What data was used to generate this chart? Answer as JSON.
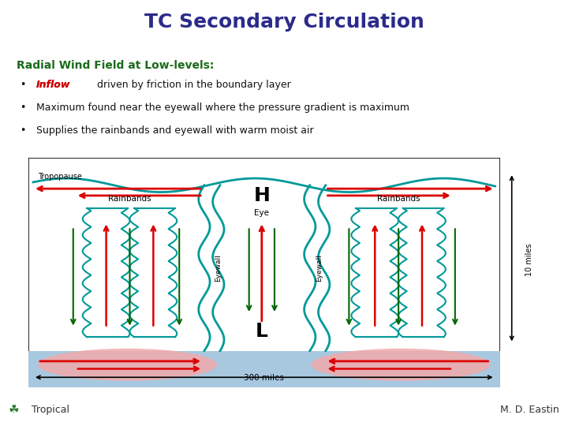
{
  "title": "TC Secondary Circulation",
  "title_color": "#2B2B8B",
  "title_fontsize": 18,
  "subtitle": "Radial Wind Field at Low-levels:",
  "subtitle_color": "#1a6b1a",
  "subtitle_fontsize": 10,
  "bullet1_prefix": "Inflow",
  "bullet1_prefix_color": "#cc0000",
  "bullet1_rest": " driven by friction in the boundary layer",
  "bullet2": "Maximum found near the eyewall where the pressure gradient is maximum",
  "bullet3": "Supplies the rainbands and eyewall with warm moist air",
  "bullet_fontsize": 9,
  "bullet_color": "#111111",
  "footer_left": "Tropical",
  "footer_right": "M. D. Eastin",
  "footer_color": "#555555",
  "footer_bg": "#d0d0d0",
  "tropopause_label": "Tropopause",
  "eye_label": "Eye",
  "rainbands_label_left": "Rainbands",
  "rainbands_label_right": "Rainbands",
  "eyewall_left_label": "Eyewall",
  "eyewall_right_label": "Eyewall",
  "H_label": "H",
  "L_label": "L",
  "miles_label": "300 miles",
  "miles_10_label": "10 miles",
  "teal_color": "#009999",
  "red_arrow": "#dd0000",
  "green_arrow": "#006600",
  "ocean_color": "#a8c8e0",
  "inflow_color": "#f0aaaa"
}
